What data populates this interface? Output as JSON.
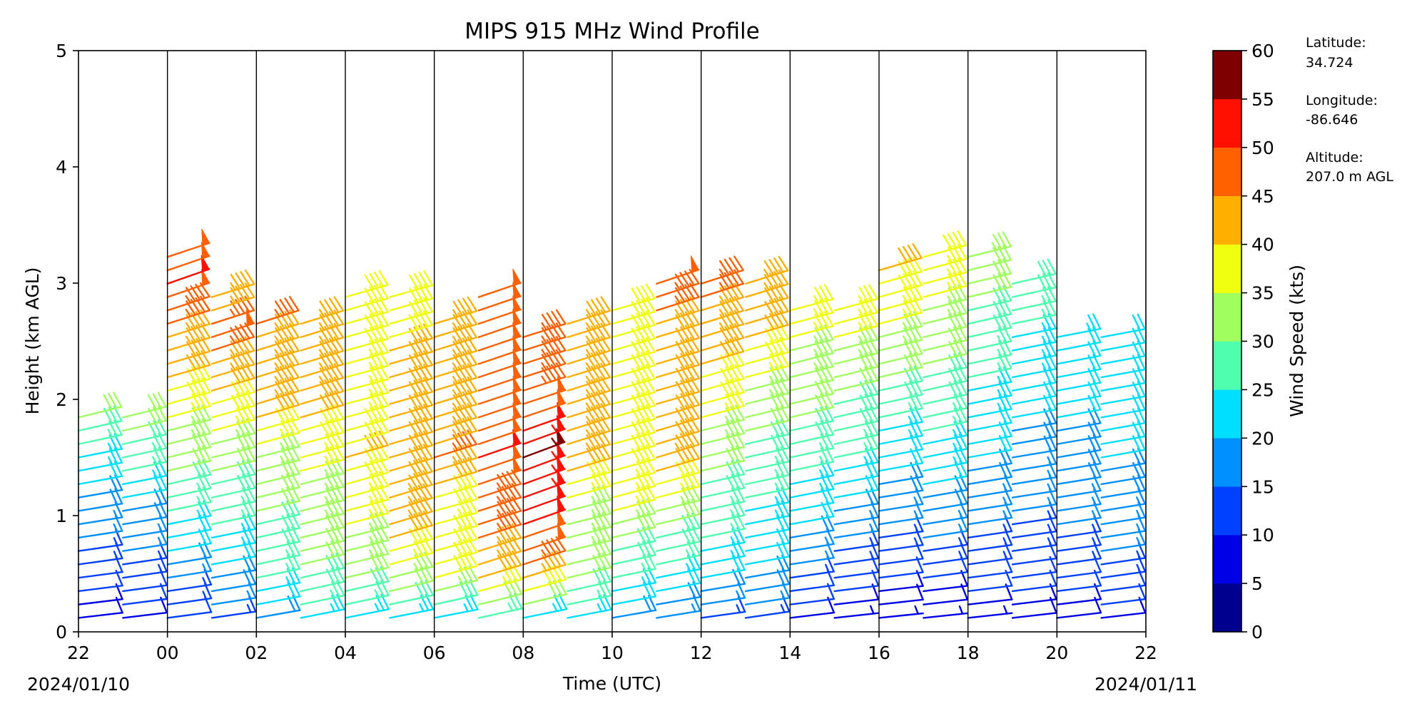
{
  "chart_data": {
    "type": "wind_barbs",
    "title": "MIPS 915 MHz Wind Profile",
    "xlabel": "Time (UTC)",
    "ylabel": "Height (km AGL)",
    "x_tick_labels": [
      "22",
      "00",
      "02",
      "04",
      "06",
      "08",
      "10",
      "12",
      "14",
      "16",
      "18",
      "20",
      "22"
    ],
    "x_start_date": "2024/01/10",
    "x_end_date": "2024/01/11",
    "x_range_hours": [
      22,
      46
    ],
    "ylim": [
      0,
      5
    ],
    "y_ticks": [
      0,
      1,
      2,
      3,
      4,
      5
    ],
    "hourly_vertical_lines": true,
    "colorbar": {
      "label": "Wind Speed (kts)",
      "ticks": [
        0,
        5,
        10,
        15,
        20,
        25,
        30,
        35,
        40,
        45,
        50,
        55,
        60
      ],
      "colors": [
        "#00008f",
        "#0000e6",
        "#0040ff",
        "#0090ff",
        "#00dfff",
        "#4fffaf",
        "#a0ff5f",
        "#efff0f",
        "#ffaf00",
        "#ff6000",
        "#ff1000",
        "#7f0000"
      ]
    },
    "station": {
      "latitude_label": "Latitude:",
      "latitude": "34.724",
      "longitude_label": "Longitude:",
      "longitude": "-86.646",
      "altitude_label": "Altitude:",
      "altitude": "207.0 m AGL"
    },
    "profile_times_hours": [
      22,
      23,
      24,
      25,
      26,
      27,
      28,
      29,
      30,
      31,
      32,
      33,
      34,
      35,
      36,
      37,
      38,
      39,
      40,
      41,
      42,
      43,
      44,
      45
    ],
    "profile_top_km": [
      1.95,
      1.9,
      3.3,
      2.9,
      2.65,
      2.65,
      2.95,
      2.95,
      2.75,
      2.95,
      2.6,
      2.65,
      2.8,
      3.0,
      3.0,
      3.05,
      2.85,
      2.85,
      3.2,
      3.25,
      3.25,
      3.1,
      2.6,
      2.55
    ],
    "speed_profiles_kts": [
      [
        [
          0,
          8
        ],
        [
          0.5,
          12
        ],
        [
          1,
          18
        ],
        [
          1.5,
          24
        ],
        [
          1.95,
          35
        ]
      ],
      [
        [
          0,
          8
        ],
        [
          0.5,
          14
        ],
        [
          1,
          19
        ],
        [
          1.5,
          27
        ],
        [
          1.9,
          33
        ]
      ],
      [
        [
          0,
          10
        ],
        [
          0.5,
          17
        ],
        [
          1,
          25
        ],
        [
          1.5,
          32
        ],
        [
          2,
          38
        ],
        [
          2.6,
          45
        ],
        [
          3,
          51
        ],
        [
          3.3,
          47
        ]
      ],
      [
        [
          0,
          12
        ],
        [
          0.5,
          20
        ],
        [
          1,
          27
        ],
        [
          1.5,
          32
        ],
        [
          2,
          40
        ],
        [
          2.5,
          48
        ],
        [
          2.9,
          43
        ]
      ],
      [
        [
          0,
          18
        ],
        [
          0.5,
          26
        ],
        [
          1,
          30
        ],
        [
          1.5,
          34
        ],
        [
          2,
          44
        ],
        [
          2.65,
          45
        ]
      ],
      [
        [
          0,
          22
        ],
        [
          0.5,
          30
        ],
        [
          1,
          33
        ],
        [
          1.5,
          36
        ],
        [
          2,
          43
        ],
        [
          2.65,
          44
        ]
      ],
      [
        [
          0,
          22
        ],
        [
          0.5,
          32
        ],
        [
          1,
          36
        ],
        [
          1.5,
          40
        ],
        [
          2,
          36
        ],
        [
          2.5,
          38
        ],
        [
          2.95,
          40
        ]
      ],
      [
        [
          0,
          20
        ],
        [
          0.5,
          36
        ],
        [
          1,
          44
        ],
        [
          1.5,
          40
        ],
        [
          2,
          40
        ],
        [
          2.5,
          40
        ],
        [
          2.95,
          38
        ]
      ],
      [
        [
          0,
          18
        ],
        [
          0.5,
          40
        ],
        [
          1,
          37
        ],
        [
          1.5,
          45
        ],
        [
          2,
          43
        ],
        [
          2.5,
          44
        ],
        [
          2.75,
          42
        ]
      ],
      [
        [
          0,
          22
        ],
        [
          0.5,
          44
        ],
        [
          1,
          46
        ],
        [
          1.5,
          50
        ],
        [
          2,
          48
        ],
        [
          2.5,
          50
        ],
        [
          2.95,
          49
        ]
      ],
      [
        [
          0,
          18
        ],
        [
          0.5,
          46
        ],
        [
          1,
          52
        ],
        [
          1.5,
          55
        ],
        [
          2,
          47
        ],
        [
          2.6,
          45
        ]
      ],
      [
        [
          0,
          20
        ],
        [
          0.5,
          32
        ],
        [
          1,
          34
        ],
        [
          1.5,
          44
        ],
        [
          2,
          45
        ],
        [
          2.65,
          44
        ]
      ],
      [
        [
          0,
          18
        ],
        [
          0.5,
          26
        ],
        [
          1,
          36
        ],
        [
          1.5,
          38
        ],
        [
          2,
          38
        ],
        [
          2.5,
          40
        ],
        [
          2.8,
          39
        ]
      ],
      [
        [
          0,
          15
        ],
        [
          0.5,
          25
        ],
        [
          1,
          32
        ],
        [
          1.5,
          43
        ],
        [
          2,
          40
        ],
        [
          2.5,
          42
        ],
        [
          3.0,
          48
        ]
      ],
      [
        [
          0,
          10
        ],
        [
          0.5,
          22
        ],
        [
          1,
          27
        ],
        [
          1.5,
          32
        ],
        [
          2,
          38
        ],
        [
          2.5,
          43
        ],
        [
          3.0,
          46
        ]
      ],
      [
        [
          0,
          12
        ],
        [
          0.5,
          20
        ],
        [
          1,
          24
        ],
        [
          1.5,
          28
        ],
        [
          2,
          34
        ],
        [
          2.5,
          40
        ],
        [
          3.05,
          45
        ]
      ],
      [
        [
          0,
          8
        ],
        [
          0.5,
          14
        ],
        [
          1,
          22
        ],
        [
          1.5,
          27
        ],
        [
          2,
          32
        ],
        [
          2.5,
          35
        ],
        [
          2.85,
          36
        ]
      ],
      [
        [
          0,
          6
        ],
        [
          0.5,
          12
        ],
        [
          1,
          18
        ],
        [
          1.5,
          26
        ],
        [
          2,
          30
        ],
        [
          2.5,
          35
        ],
        [
          2.85,
          37
        ]
      ],
      [
        [
          0,
          5
        ],
        [
          0.5,
          11
        ],
        [
          1,
          16
        ],
        [
          1.5,
          22
        ],
        [
          2,
          28
        ],
        [
          2.5,
          34
        ],
        [
          3.2,
          42
        ]
      ],
      [
        [
          0,
          5
        ],
        [
          0.5,
          12
        ],
        [
          1,
          18
        ],
        [
          1.5,
          24
        ],
        [
          2,
          28
        ],
        [
          2.5,
          32
        ],
        [
          3.25,
          38
        ]
      ],
      [
        [
          0,
          6
        ],
        [
          0.5,
          12
        ],
        [
          1,
          16
        ],
        [
          1.5,
          20
        ],
        [
          2,
          24
        ],
        [
          2.5,
          28
        ],
        [
          3.25,
          33
        ]
      ],
      [
        [
          0,
          7
        ],
        [
          0.5,
          12
        ],
        [
          1,
          15
        ],
        [
          1.5,
          18
        ],
        [
          2,
          22
        ],
        [
          2.5,
          24
        ],
        [
          3.1,
          31
        ]
      ],
      [
        [
          0,
          8
        ],
        [
          0.5,
          12
        ],
        [
          1,
          16
        ],
        [
          1.5,
          19
        ],
        [
          2,
          21
        ],
        [
          2.6,
          23
        ]
      ],
      [
        [
          0,
          7
        ],
        [
          0.5,
          14
        ],
        [
          1,
          17
        ],
        [
          1.5,
          20
        ],
        [
          2.1,
          20
        ],
        [
          2.55,
          22
        ]
      ]
    ]
  }
}
